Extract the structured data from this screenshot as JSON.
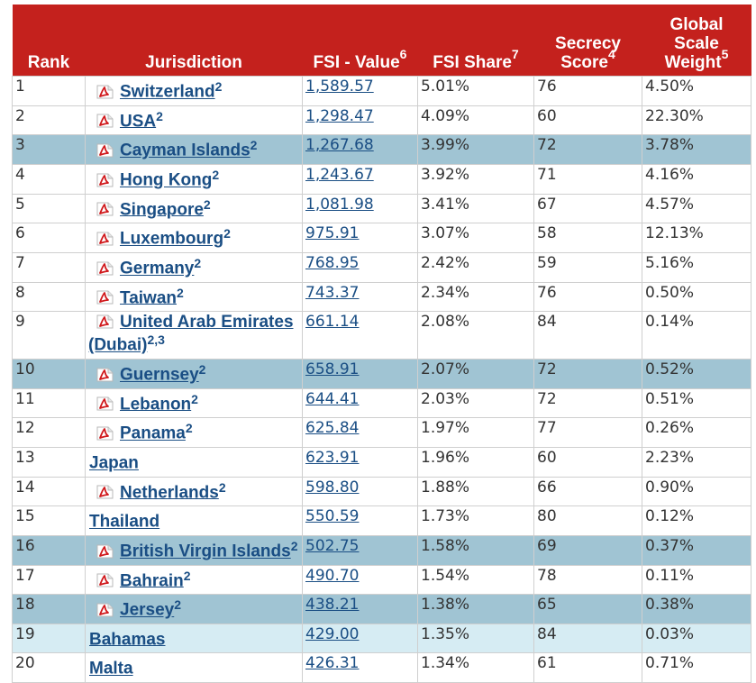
{
  "headers": {
    "rank": "Rank",
    "jurisdiction": "Jurisdiction",
    "fsi_value": "FSI - Value",
    "fsi_value_sup": "6",
    "fsi_share": "FSI Share",
    "fsi_share_sup": "7",
    "secrecy_line1": "Secrecy",
    "secrecy_line2": "Score",
    "secrecy_sup": "4",
    "gsw_line1": "Global",
    "gsw_line2": "Scale",
    "gsw_line3": "Weight",
    "gsw_sup": "5"
  },
  "icons": {
    "pdf": "pdf-icon"
  },
  "colors": {
    "header_bg": "#c4211d",
    "link": "#1a4e84",
    "highlight": "#a0c4d3",
    "highlight_light": "#d6ecf3"
  },
  "rows": [
    {
      "rank": "1",
      "name": "Switzerland",
      "sup": "2",
      "pdf": true,
      "value": "1,589.57",
      "share": "5.01%",
      "secrecy": "76",
      "gsw": "4.50%",
      "style": ""
    },
    {
      "rank": "2",
      "name": "USA",
      "sup": "2",
      "pdf": true,
      "value": "1,298.47",
      "share": "4.09%",
      "secrecy": "60",
      "gsw": "22.30%",
      "style": ""
    },
    {
      "rank": "3",
      "name": "Cayman Islands",
      "sup": "2",
      "pdf": true,
      "value": "1,267.68",
      "share": "3.99%",
      "secrecy": "72",
      "gsw": "3.78%",
      "style": "hl"
    },
    {
      "rank": "4",
      "name": "Hong Kong",
      "sup": "2",
      "pdf": true,
      "value": "1,243.67",
      "share": "3.92%",
      "secrecy": "71",
      "gsw": "4.16%",
      "style": ""
    },
    {
      "rank": "5",
      "name": "Singapore",
      "sup": "2",
      "pdf": true,
      "value": "1,081.98",
      "share": "3.41%",
      "secrecy": "67",
      "gsw": "4.57%",
      "style": ""
    },
    {
      "rank": "6",
      "name": "Luxembourg",
      "sup": "2",
      "pdf": true,
      "value": "975.91",
      "share": "3.07%",
      "secrecy": "58",
      "gsw": "12.13%",
      "style": ""
    },
    {
      "rank": "7",
      "name": "Germany",
      "sup": "2",
      "pdf": true,
      "value": "768.95",
      "share": "2.42%",
      "secrecy": "59",
      "gsw": "5.16%",
      "style": ""
    },
    {
      "rank": "8",
      "name": "Taiwan",
      "sup": "2",
      "pdf": true,
      "value": "743.37",
      "share": "2.34%",
      "secrecy": "76",
      "gsw": "0.50%",
      "style": ""
    },
    {
      "rank": "9",
      "name": "United Arab Emirates (Dubai)",
      "sup": "2,3",
      "pdf": true,
      "value": "661.14",
      "share": "2.08%",
      "secrecy": "84",
      "gsw": "0.14%",
      "style": ""
    },
    {
      "rank": "10",
      "name": "Guernsey",
      "sup": "2",
      "pdf": true,
      "value": "658.91",
      "share": "2.07%",
      "secrecy": "72",
      "gsw": "0.52%",
      "style": "hl"
    },
    {
      "rank": "11",
      "name": "Lebanon",
      "sup": "2",
      "pdf": true,
      "value": "644.41",
      "share": "2.03%",
      "secrecy": "72",
      "gsw": "0.51%",
      "style": ""
    },
    {
      "rank": "12",
      "name": "Panama",
      "sup": "2",
      "pdf": true,
      "value": "625.84",
      "share": "1.97%",
      "secrecy": "77",
      "gsw": "0.26%",
      "style": ""
    },
    {
      "rank": "13",
      "name": "Japan",
      "sup": "",
      "pdf": false,
      "value": "623.91",
      "share": "1.96%",
      "secrecy": "60",
      "gsw": "2.23%",
      "style": ""
    },
    {
      "rank": "14",
      "name": "Netherlands",
      "sup": "2",
      "pdf": true,
      "value": "598.80",
      "share": "1.88%",
      "secrecy": "66",
      "gsw": "0.90%",
      "style": ""
    },
    {
      "rank": "15",
      "name": "Thailand",
      "sup": "",
      "pdf": false,
      "value": "550.59",
      "share": "1.73%",
      "secrecy": "80",
      "gsw": "0.12%",
      "style": ""
    },
    {
      "rank": "16",
      "name": "British Virgin Islands",
      "sup": "2",
      "pdf": true,
      "value": "502.75",
      "share": "1.58%",
      "secrecy": "69",
      "gsw": "0.37%",
      "style": "hl"
    },
    {
      "rank": "17",
      "name": "Bahrain",
      "sup": "2",
      "pdf": true,
      "value": "490.70",
      "share": "1.54%",
      "secrecy": "78",
      "gsw": "0.11%",
      "style": ""
    },
    {
      "rank": "18",
      "name": "Jersey",
      "sup": "2",
      "pdf": true,
      "value": "438.21",
      "share": "1.38%",
      "secrecy": "65",
      "gsw": "0.38%",
      "style": "hl"
    },
    {
      "rank": "19",
      "name": "Bahamas",
      "sup": "",
      "pdf": false,
      "value": "429.00",
      "share": "1.35%",
      "secrecy": "84",
      "gsw": "0.03%",
      "style": "lt"
    },
    {
      "rank": "20",
      "name": "Malta",
      "sup": "",
      "pdf": false,
      "value": "426.31",
      "share": "1.34%",
      "secrecy": "61",
      "gsw": "0.71%",
      "style": ""
    }
  ]
}
